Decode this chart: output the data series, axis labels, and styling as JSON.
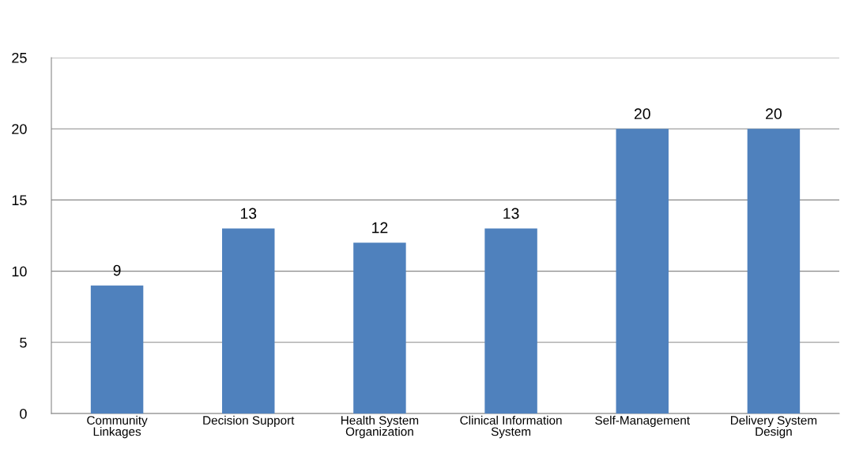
{
  "chart_data": {
    "type": "bar",
    "categories": [
      "Community\nLinkages",
      "Decision Support",
      "Health System\nOrganization",
      "Clinical Information\nSystem",
      "Self-Management",
      "Delivery System\nDesign"
    ],
    "values": [
      9,
      13,
      12,
      13,
      20,
      20
    ],
    "color": "#4f81bd",
    "ylim": [
      0,
      25
    ],
    "yticks": [
      0,
      5,
      10,
      15,
      20,
      25
    ],
    "grid": "y",
    "data_labels": true
  }
}
